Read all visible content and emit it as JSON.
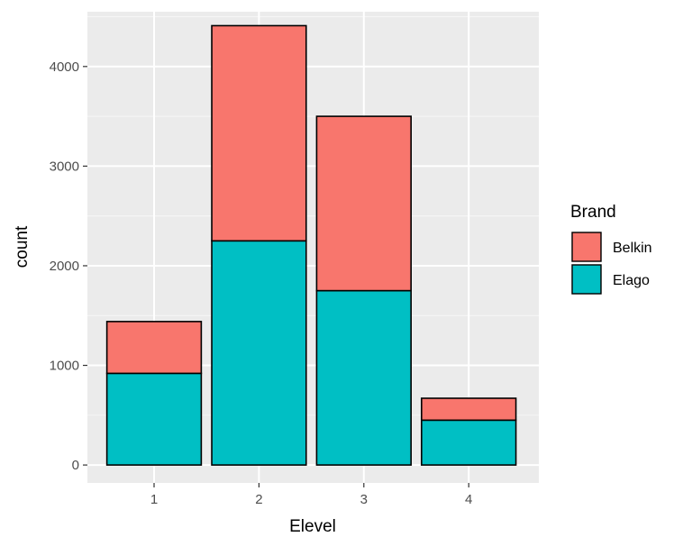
{
  "chart_data": {
    "type": "bar",
    "stacked": true,
    "xlabel": "Elevel",
    "ylabel": "count",
    "categories": [
      "1",
      "2",
      "3",
      "4"
    ],
    "ylim": [
      -180,
      4550
    ],
    "yticks": [
      0,
      1000,
      2000,
      3000,
      4000
    ],
    "grid": true,
    "legend": {
      "title": "Brand",
      "placement": "right"
    },
    "series": [
      {
        "name": "Elago",
        "color": "#00BFC4",
        "values": [
          920,
          2250,
          1750,
          450
        ]
      },
      {
        "name": "Belkin",
        "color": "#F8766D",
        "values": [
          520,
          2160,
          1750,
          220
        ]
      }
    ],
    "legend_order": [
      "Belkin",
      "Elago"
    ],
    "colors": {
      "panel": "#EBEBEB",
      "grid_major": "#FFFFFF",
      "grid_minor": "#F5F5F5",
      "bar_outline": "#000000"
    }
  }
}
